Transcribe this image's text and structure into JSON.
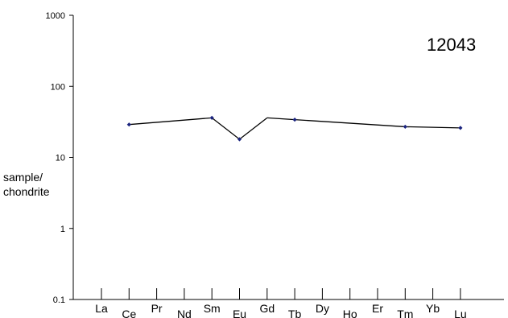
{
  "chart_data": {
    "type": "line",
    "title": "12043",
    "ylabel_lines": [
      "sample/",
      "chondrite"
    ],
    "ylabel": "sample/ chondrite",
    "yscale": "log",
    "ylim": [
      0.1,
      1000
    ],
    "yticks": [
      "0.1",
      "1",
      "10",
      "100",
      "1000"
    ],
    "categories": [
      "La",
      "Ce",
      "Pr",
      "Nd",
      "Sm",
      "Eu",
      "Gd",
      "Tb",
      "Dy",
      "Ho",
      "Er",
      "Tm",
      "Yb",
      "Lu"
    ],
    "series": [
      {
        "color": "#000000",
        "marker_color": "#1a237e",
        "values": [
          null,
          29,
          null,
          null,
          36,
          18,
          null,
          34,
          null,
          null,
          null,
          27,
          null,
          26
        ]
      }
    ],
    "line_segments": [
      {
        "points": [
          [
            "Ce",
            29
          ],
          [
            "Sm",
            36
          ],
          [
            "Eu",
            18
          ],
          [
            "Gd",
            36
          ]
        ]
      },
      {
        "points": [
          [
            "Gd",
            36
          ],
          [
            "Tb",
            34
          ],
          [
            "Tm",
            27
          ],
          [
            "Lu",
            26
          ]
        ]
      }
    ],
    "grid": false,
    "legend": "none"
  }
}
